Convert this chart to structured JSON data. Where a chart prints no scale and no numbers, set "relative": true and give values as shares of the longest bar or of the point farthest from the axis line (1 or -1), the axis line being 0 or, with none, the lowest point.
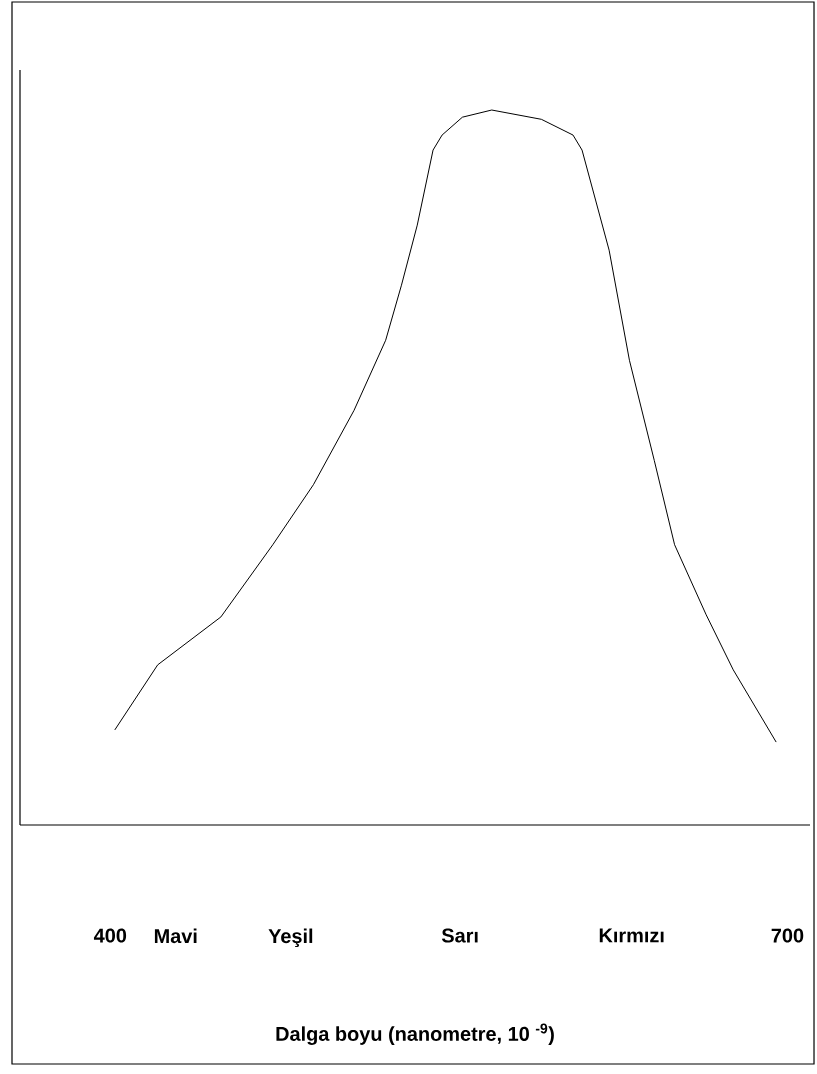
{
  "chart_data": {
    "type": "line",
    "relative": true,
    "xlabel": "Dalga boyu (nanometre, 10 $^{-9}$)",
    "x": [
      402,
      421,
      449,
      472,
      490,
      508,
      522,
      529,
      536,
      543,
      547,
      556,
      569,
      591,
      605,
      609,
      621,
      630,
      641,
      650,
      664,
      676,
      695
    ],
    "series": [
      {
        "color": "#000000",
        "values": [
          0.133,
          0.224,
          0.291,
          0.392,
          0.476,
          0.58,
          0.678,
          0.755,
          0.839,
          0.944,
          0.965,
          0.99,
          1,
          0.987,
          0.965,
          0.944,
          0.804,
          0.65,
          0.51,
          0.392,
          0.294,
          0.217,
          0.116
        ]
      }
    ],
    "xlim": [
      360,
      710
    ],
    "xticks": [
      400,
      {
        "value": 429,
        "label": "Mavi"
      },
      {
        "value": 480,
        "label": "Yeşil"
      },
      {
        "value": 555,
        "label": "Sarı"
      },
      {
        "value": 631,
        "label": "Kırmızı"
      },
      700
    ],
    "grid": false,
    "marker": "none",
    "line_style": "solid"
  }
}
